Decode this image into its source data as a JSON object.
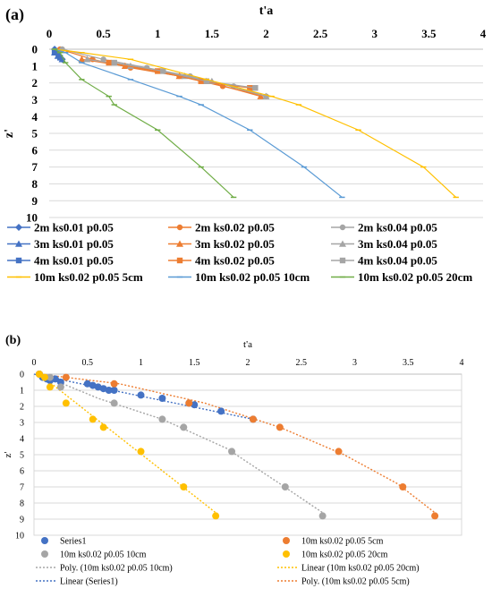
{
  "chart_data": [
    {
      "panel_label": "(a)",
      "type": "line",
      "xlabel": "t'a",
      "ylabel": "z'",
      "x_ticks": [
        "0",
        "0.5",
        "1",
        "1.5",
        "2",
        "2.5",
        "3",
        "3.5",
        "4"
      ],
      "y_ticks": [
        "0",
        "1",
        "2",
        "3",
        "4",
        "5",
        "6",
        "7",
        "8",
        "9",
        "10"
      ],
      "xlim": [
        0,
        4
      ],
      "ylim": [
        0,
        10
      ],
      "y_inverted": true,
      "y_axis_reversed": true,
      "x_axis_position": "top",
      "grid": "horizontal",
      "legend_position": "bottom",
      "series": [
        {
          "name": "2m ks0.01 p0.05",
          "color": "#4472c4",
          "marker": "diamond",
          "x": [
            0.05,
            0.07,
            0.09,
            0.12
          ],
          "y": [
            0,
            0.2,
            0.4,
            0.6
          ]
        },
        {
          "name": "2m ks0.02 p0.05",
          "color": "#ed7d31",
          "marker": "circle",
          "x": [
            0.1,
            0.4,
            0.75,
            1.2,
            1.6,
            2.0
          ],
          "y": [
            0,
            0.6,
            1.1,
            1.6,
            2.2,
            2.8
          ]
        },
        {
          "name": "2m ks0.04 p0.05",
          "color": "#a5a5a5",
          "marker": "circle",
          "x": [
            0.12,
            0.5,
            0.9,
            1.3,
            1.7,
            2.0
          ],
          "y": [
            0,
            0.6,
            1.1,
            1.6,
            2.2,
            2.8
          ]
        },
        {
          "name": "3m ks0.01 p0.05",
          "color": "#4472c4",
          "marker": "triangle",
          "x": [
            0.05,
            0.08,
            0.12
          ],
          "y": [
            0.2,
            0.4,
            0.6
          ]
        },
        {
          "name": "3m ks0.02 p0.05",
          "color": "#ed7d31",
          "marker": "triangle",
          "x": [
            0.3,
            0.7,
            1.2,
            1.45,
            1.95
          ],
          "y": [
            0.6,
            1.0,
            1.6,
            1.9,
            2.8
          ]
        },
        {
          "name": "3m ks0.04 p0.05",
          "color": "#a5a5a5",
          "marker": "triangle",
          "x": [
            0.35,
            0.75,
            1.25,
            1.5,
            2.0
          ],
          "y": [
            0.6,
            1.0,
            1.6,
            1.9,
            2.8
          ]
        },
        {
          "name": "4m ks0.01 p0.05",
          "color": "#4472c4",
          "marker": "square",
          "x": [
            0.05,
            0.1
          ],
          "y": [
            0.2,
            0.5
          ]
        },
        {
          "name": "4m ks0.02 p0.05",
          "color": "#ed7d31",
          "marker": "square",
          "x": [
            0.55,
            1.0,
            1.4,
            1.85
          ],
          "y": [
            0.8,
            1.3,
            1.9,
            2.3
          ]
        },
        {
          "name": "4m ks0.04 p0.05",
          "color": "#a5a5a5",
          "marker": "square",
          "x": [
            0.6,
            1.05,
            1.45,
            1.9
          ],
          "y": [
            0.8,
            1.3,
            1.9,
            2.3
          ]
        },
        {
          "name": "10m ks0.02 p0.05 5cm",
          "color": "#ffc000",
          "marker": "dash",
          "x": [
            0.05,
            0.3,
            0.75,
            1.45,
            2.05,
            2.3,
            2.85,
            3.45,
            3.75
          ],
          "y": [
            0,
            0.2,
            0.6,
            1.8,
            2.8,
            3.3,
            4.8,
            7.0,
            8.8
          ]
        },
        {
          "name": "10m ks0.02 p0.05 10cm",
          "color": "#5b9bd5",
          "marker": "dash",
          "x": [
            0.05,
            0.15,
            0.3,
            0.75,
            1.2,
            1.4,
            1.85,
            2.35,
            2.7
          ],
          "y": [
            0,
            0.2,
            0.8,
            1.8,
            2.8,
            3.3,
            4.8,
            7.0,
            8.8
          ]
        },
        {
          "name": "10m ks0.02 p0.05 20cm",
          "color": "#70ad47",
          "marker": "dash",
          "x": [
            0.05,
            0.1,
            0.15,
            0.3,
            0.55,
            0.6,
            1.0,
            1.4,
            1.7
          ],
          "y": [
            0,
            0.2,
            0.8,
            1.8,
            2.8,
            3.3,
            4.8,
            7.0,
            8.8
          ]
        }
      ]
    },
    {
      "panel_label": "(b)",
      "type": "scatter",
      "xlabel": "t'a",
      "ylabel": "z'",
      "x_ticks": [
        "0",
        "0.5",
        "1",
        "1.5",
        "2",
        "2.5",
        "3",
        "3.5",
        "4"
      ],
      "y_ticks": [
        "0",
        "1",
        "2",
        "3",
        "4",
        "5",
        "6",
        "7",
        "8",
        "9",
        "10"
      ],
      "xlim": [
        0,
        4
      ],
      "ylim": [
        0,
        10
      ],
      "y_inverted": true,
      "y_axis_reversed": true,
      "x_axis_position": "top",
      "grid": "horizontal",
      "legend_position": "bottom",
      "series": [
        {
          "name": "Series1",
          "color": "#4472c4",
          "x": [
            0.05,
            0.08,
            0.12,
            0.15,
            0.2,
            0.25,
            0.5,
            0.55,
            0.6,
            0.65,
            0.7,
            0.75,
            1.0,
            1.2,
            1.45,
            1.5,
            1.75,
            2.05
          ],
          "y": [
            0,
            0.2,
            0.3,
            0.4,
            0.3,
            0.5,
            0.6,
            0.7,
            0.8,
            0.9,
            1.0,
            1.0,
            1.3,
            1.5,
            1.8,
            1.9,
            2.3,
            2.8
          ]
        },
        {
          "name": "10m ks0.02 p0.05 5cm",
          "color": "#ed7d31",
          "x": [
            0.05,
            0.3,
            0.75,
            1.45,
            2.05,
            2.3,
            2.85,
            3.45,
            3.75
          ],
          "y": [
            0,
            0.2,
            0.6,
            1.8,
            2.8,
            3.3,
            4.8,
            7.0,
            8.8
          ]
        },
        {
          "name": "10m ks0.02 p0.05 10cm",
          "color": "#a5a5a5",
          "x": [
            0.05,
            0.15,
            0.25,
            0.75,
            1.2,
            1.4,
            1.85,
            2.35,
            2.7
          ],
          "y": [
            0,
            0.2,
            0.8,
            1.8,
            2.8,
            3.3,
            4.8,
            7.0,
            8.8
          ]
        },
        {
          "name": "10m ks0.02 p0.05 20cm",
          "color": "#ffc000",
          "x": [
            0.05,
            0.1,
            0.15,
            0.3,
            0.55,
            0.65,
            1.0,
            1.4,
            1.7
          ],
          "y": [
            0,
            0.2,
            0.8,
            1.8,
            2.8,
            3.3,
            4.8,
            7.0,
            8.8
          ]
        }
      ],
      "trendlines": [
        {
          "name": "Poly. (10m ks0.02 p0.05 10cm)",
          "color": "#a5a5a5",
          "kind": "poly",
          "x": [
            0.05,
            0.6,
            1.2,
            1.8,
            2.3,
            2.7
          ],
          "y": [
            0,
            1.5,
            2.8,
            4.6,
            6.8,
            8.6
          ]
        },
        {
          "name": "Linear (10m ks0.02 p0.05 20cm)",
          "color": "#ffc000",
          "kind": "linear",
          "x": [
            0.05,
            1.7
          ],
          "y": [
            0,
            8.6
          ]
        },
        {
          "name": "Linear (Series1)",
          "color": "#4472c4",
          "kind": "linear",
          "x": [
            0.0,
            2.05
          ],
          "y": [
            0,
            2.8
          ]
        },
        {
          "name": "Poly. (10m ks0.02 p0.05 5cm)",
          "color": "#ed7d31",
          "kind": "poly",
          "x": [
            0.05,
            0.8,
            1.6,
            2.3,
            2.9,
            3.4,
            3.75
          ],
          "y": [
            0,
            0.6,
            1.8,
            3.3,
            5.0,
            6.8,
            8.6
          ]
        }
      ]
    }
  ]
}
